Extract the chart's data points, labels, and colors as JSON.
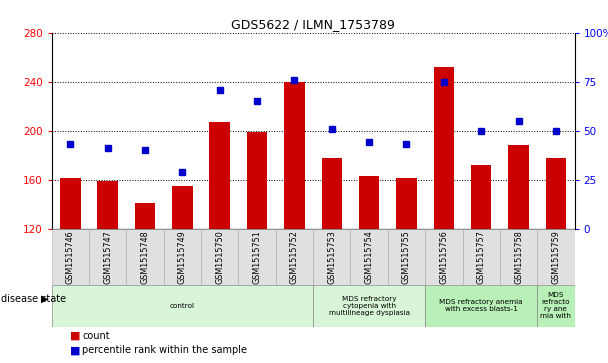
{
  "title": "GDS5622 / ILMN_1753789",
  "samples": [
    "GSM1515746",
    "GSM1515747",
    "GSM1515748",
    "GSM1515749",
    "GSM1515750",
    "GSM1515751",
    "GSM1515752",
    "GSM1515753",
    "GSM1515754",
    "GSM1515755",
    "GSM1515756",
    "GSM1515757",
    "GSM1515758",
    "GSM1515759"
  ],
  "counts": [
    161,
    159,
    141,
    155,
    207,
    199,
    240,
    178,
    163,
    161,
    252,
    172,
    188,
    178
  ],
  "percentiles": [
    43,
    41,
    40,
    29,
    71,
    65,
    76,
    51,
    44,
    43,
    75,
    50,
    55,
    50
  ],
  "ylim_left": [
    120,
    280
  ],
  "ylim_right": [
    0,
    100
  ],
  "yticks_left": [
    120,
    160,
    200,
    240,
    280
  ],
  "yticks_right": [
    0,
    25,
    50,
    75,
    100
  ],
  "bar_color": "#cc0000",
  "dot_color": "#0000cc",
  "disease_groups": [
    {
      "label": "control",
      "start": 0,
      "end": 7,
      "color": "#d8f5d8"
    },
    {
      "label": "MDS refractory\ncytopenia with\nmultilineage dysplasia",
      "start": 7,
      "end": 10,
      "color": "#d8f5d8"
    },
    {
      "label": "MDS refractory anemia\nwith excess blasts-1",
      "start": 10,
      "end": 13,
      "color": "#b8f0b8"
    },
    {
      "label": "MDS\nrefracto\nry ane\nmia with",
      "start": 13,
      "end": 14,
      "color": "#b8f0b8"
    }
  ],
  "legend_count_label": "count",
  "legend_percentile_label": "percentile rank within the sample",
  "disease_state_label": "disease state"
}
